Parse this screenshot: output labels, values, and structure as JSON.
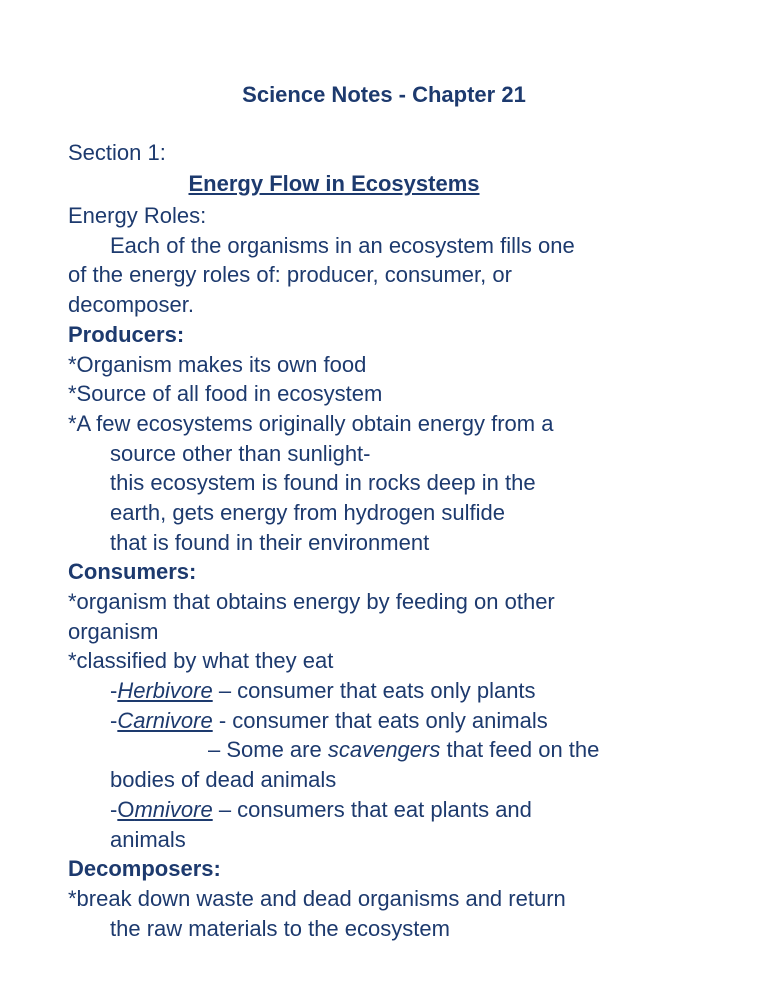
{
  "colors": {
    "text": "#1d3a6e",
    "background": "#ffffff"
  },
  "typography": {
    "family": "Verdana",
    "title_size_pt": 16,
    "body_size_pt": 16,
    "line_height": 1.35
  },
  "title": "Science Notes - Chapter 21",
  "section_label": "Section 1:",
  "section_title": "Energy Flow in Ecosystems",
  "energy_roles_heading": "Energy Roles:",
  "energy_roles_body_l1": "Each of the organisms in an ecosystem fills one",
  "energy_roles_body_l2": "of the energy roles of:  producer, consumer, or",
  "energy_roles_body_l3": "decomposer.",
  "producers_heading": "Producers:",
  "producers_b1": "*Organism makes its own food",
  "producers_b2": "*Source of all food in ecosystem",
  "producers_b3": "*A few ecosystems originally obtain energy from a",
  "producers_b3_l2": "source other than sunlight-",
  "producers_b3_l3": "this ecosystem is found in rocks deep in the",
  "producers_b3_l4": "earth, gets energy from hydrogen sulfide",
  "producers_b3_l5": "that is found in their environment",
  "consumers_heading": "Consumers:",
  "consumers_b1_l1": "*organism that obtains energy by feeding on other",
  "consumers_b1_l2": "organism",
  "consumers_b2": "*classified by what they eat",
  "herb_dash": "-",
  "herb_word": "Herbivore",
  "herb_rest": " – consumer that eats only plants",
  "carn_dash": "-",
  "carn_word": "Carnivore",
  "carn_rest": " - consumer that eats only animals",
  "carn_l2_a": "– Some are ",
  "carn_l2_b": "scavengers",
  "carn_l2_c": " that feed on the",
  "carn_l3": "bodies of dead animals",
  "omni_dash": "-",
  "omni_o": "O",
  "omni_word": "mnivore",
  "omni_rest": " – consumers that eat plants and",
  "omni_l2": "animals",
  "decomp_heading": "Decomposers:",
  "decomp_l1": "*break down waste and dead organisms and return",
  "decomp_l2": "the raw materials to the ecosystem"
}
